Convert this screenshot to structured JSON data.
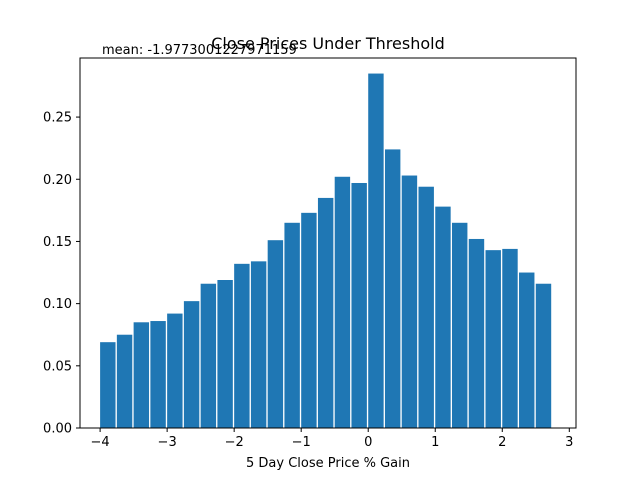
{
  "chart_data": {
    "type": "bar",
    "title": "Close Prices Under Threshold",
    "annotation": "mean: -1.9773001227971159",
    "xlabel": "5 Day Close Price % Gain",
    "ylabel": "",
    "xlim": [
      -4.3,
      3.1
    ],
    "ylim": [
      0,
      0.2975
    ],
    "grid": false,
    "bar_color": "#1f77b4",
    "x_ticks": [
      -4,
      -3,
      -2,
      -1,
      0,
      1,
      2,
      3
    ],
    "x_tick_labels": [
      "−4",
      "−3",
      "−2",
      "−1",
      "0",
      "1",
      "2",
      "3"
    ],
    "y_ticks": [
      0.0,
      0.05,
      0.1,
      0.15,
      0.2,
      0.25
    ],
    "y_tick_labels": [
      "0.00",
      "0.05",
      "0.10",
      "0.15",
      "0.20",
      "0.25"
    ],
    "bins": [
      {
        "left": -4.0,
        "right": -3.77,
        "value": 0.069
      },
      {
        "left": -3.75,
        "right": -3.52,
        "value": 0.075
      },
      {
        "left": -3.5,
        "right": -3.27,
        "value": 0.085
      },
      {
        "left": -3.25,
        "right": -3.02,
        "value": 0.086
      },
      {
        "left": -3.0,
        "right": -2.77,
        "value": 0.092
      },
      {
        "left": -2.75,
        "right": -2.52,
        "value": 0.102
      },
      {
        "left": -2.5,
        "right": -2.27,
        "value": 0.116
      },
      {
        "left": -2.25,
        "right": -2.02,
        "value": 0.119
      },
      {
        "left": -2.0,
        "right": -1.77,
        "value": 0.132
      },
      {
        "left": -1.75,
        "right": -1.52,
        "value": 0.134
      },
      {
        "left": -1.5,
        "right": -1.27,
        "value": 0.151
      },
      {
        "left": -1.25,
        "right": -1.02,
        "value": 0.165
      },
      {
        "left": -1.0,
        "right": -0.77,
        "value": 0.173
      },
      {
        "left": -0.75,
        "right": -0.52,
        "value": 0.185
      },
      {
        "left": -0.5,
        "right": -0.27,
        "value": 0.202
      },
      {
        "left": -0.25,
        "right": -0.02,
        "value": 0.197
      },
      {
        "left": 0.0,
        "right": 0.23,
        "value": 0.285
      },
      {
        "left": 0.25,
        "right": 0.48,
        "value": 0.224
      },
      {
        "left": 0.5,
        "right": 0.73,
        "value": 0.203
      },
      {
        "left": 0.75,
        "right": 0.98,
        "value": 0.194
      },
      {
        "left": 1.0,
        "right": 1.23,
        "value": 0.178
      },
      {
        "left": 1.25,
        "right": 1.48,
        "value": 0.165
      },
      {
        "left": 1.5,
        "right": 1.73,
        "value": 0.152
      },
      {
        "left": 1.75,
        "right": 1.98,
        "value": 0.143
      },
      {
        "left": 2.0,
        "right": 2.23,
        "value": 0.144
      },
      {
        "left": 2.25,
        "right": 2.48,
        "value": 0.125
      },
      {
        "left": 2.5,
        "right": 2.73,
        "value": 0.116
      }
    ]
  }
}
